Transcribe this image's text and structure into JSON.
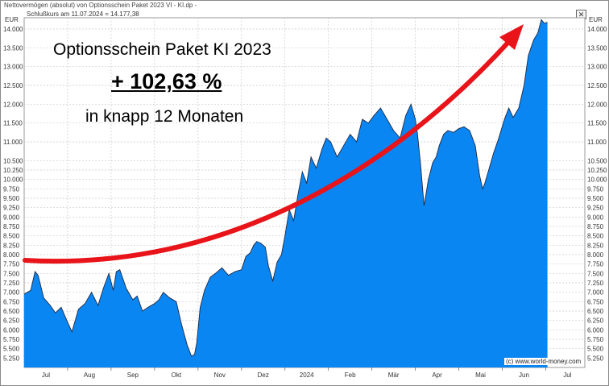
{
  "window": {
    "title": "Nettovermögen (absolut) von Optionsschein Paket 2023 VI - KI.dp -",
    "subtitle": "Schlußkurs am 11.07.2024 = 14.177,38",
    "close_glyph": "✕"
  },
  "annotation": {
    "title": "Optionsschein Paket KI 2023",
    "percent": "+ 102,63 %",
    "subtitle": "in knapp 12 Monaten"
  },
  "credit": "(c) www.world-money.com",
  "colors": {
    "area_fill": "#0a86f2",
    "area_edge": "#1f2a44",
    "arrow": "#e8141a",
    "grid": "#c9c9c9"
  },
  "chart_data": {
    "type": "area",
    "y_unit_left": "EUR",
    "y_unit_right": "EUR",
    "ylim": [
      5000,
      14300
    ],
    "y_ticks": [
      5250,
      5500,
      5750,
      6000,
      6250,
      6500,
      6750,
      7000,
      7250,
      7500,
      7750,
      8000,
      8250,
      8500,
      8750,
      9000,
      9250,
      9500,
      9750,
      10000,
      10250,
      10500,
      11000,
      11500,
      12000,
      12500,
      13000,
      13500,
      14000
    ],
    "y_tick_labels": [
      "5.250",
      "5.500",
      "5.750",
      "6.000",
      "6.250",
      "6.500",
      "6.750",
      "7.000",
      "7.250",
      "7.500",
      "7.750",
      "8.000",
      "8.250",
      "8.500",
      "8.750",
      "9.000",
      "9.250",
      "9.500",
      "9.750",
      "10.000",
      "10.250",
      "10.500",
      "11.000",
      "11.500",
      "12.000",
      "12.500",
      "13.000",
      "13.500",
      "14.000"
    ],
    "x_ticks": [
      "Jul",
      "Aug",
      "Sep",
      "Okt",
      "Nov",
      "Dez",
      "2024",
      "Feb",
      "Mär",
      "Apr",
      "Mai",
      "Jun",
      "Jul"
    ],
    "x_tick_pos": [
      0.5,
      1.5,
      2.5,
      3.5,
      4.5,
      5.5,
      6.5,
      7.5,
      8.5,
      9.5,
      10.5,
      11.5,
      12.5
    ],
    "xlim": [
      0,
      12.9
    ],
    "x": [
      0.0,
      0.15,
      0.25,
      0.32,
      0.45,
      0.6,
      0.72,
      0.85,
      1.0,
      1.1,
      1.25,
      1.4,
      1.55,
      1.7,
      1.82,
      1.95,
      2.05,
      2.12,
      2.2,
      2.35,
      2.5,
      2.6,
      2.72,
      2.85,
      3.0,
      3.1,
      3.2,
      3.35,
      3.5,
      3.62,
      3.75,
      3.85,
      3.92,
      3.97,
      4.05,
      4.15,
      4.28,
      4.4,
      4.55,
      4.7,
      4.85,
      5.0,
      5.1,
      5.2,
      5.28,
      5.35,
      5.45,
      5.55,
      5.62,
      5.72,
      5.82,
      5.92,
      6.0,
      6.1,
      6.2,
      6.3,
      6.4,
      6.5,
      6.6,
      6.72,
      6.85,
      6.95,
      7.05,
      7.2,
      7.35,
      7.5,
      7.65,
      7.78,
      7.92,
      8.05,
      8.2,
      8.35,
      8.5,
      8.65,
      8.78,
      8.9,
      9.0,
      9.05,
      9.12,
      9.2,
      9.3,
      9.4,
      9.48,
      9.55,
      9.65,
      9.75,
      9.88,
      10.0,
      10.12,
      10.25,
      10.38,
      10.48,
      10.55,
      10.6,
      10.7,
      10.8,
      10.92,
      11.05,
      11.15,
      11.25,
      11.38,
      11.5,
      11.6,
      11.72,
      11.82,
      11.9,
      11.97,
      12.04
    ],
    "y": [
      6950,
      7050,
      7550,
      7450,
      6850,
      6650,
      6450,
      6600,
      6200,
      5950,
      6550,
      6700,
      7000,
      6650,
      7100,
      7500,
      7050,
      7550,
      7600,
      7100,
      6800,
      6900,
      6500,
      6600,
      6700,
      6800,
      7000,
      6850,
      6750,
      6150,
      5600,
      5300,
      5350,
      5650,
      6600,
      7050,
      7400,
      7500,
      7650,
      7450,
      7550,
      7600,
      7950,
      8050,
      8250,
      8350,
      8300,
      8200,
      7700,
      7300,
      7800,
      8000,
      8500,
      9200,
      8900,
      9600,
      10200,
      9900,
      10600,
      10300,
      10800,
      11100,
      11000,
      10600,
      10900,
      11200,
      11000,
      11600,
      11500,
      11700,
      11900,
      11600,
      11300,
      11100,
      11700,
      12000,
      11600,
      11200,
      10400,
      9300,
      10000,
      10450,
      10600,
      10900,
      11200,
      11300,
      11250,
      11350,
      11400,
      11300,
      10900,
      10100,
      9750,
      9900,
      10300,
      10700,
      11100,
      11600,
      11900,
      11650,
      11900,
      12500,
      13300,
      13700,
      13900,
      14250,
      14150,
      14177
    ]
  }
}
